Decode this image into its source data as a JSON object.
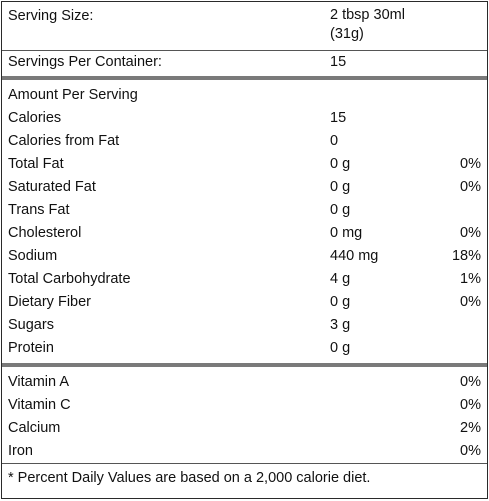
{
  "header": {
    "serving_size_label": "Serving Size:",
    "serving_size_value_line1": "2 tbsp 30ml",
    "serving_size_value_line2": "(31g)",
    "servings_per_container_label": "Servings Per Container:",
    "servings_per_container_value": "15"
  },
  "amount_per_serving_label": "Amount Per Serving",
  "nutrients": [
    {
      "label": "Calories",
      "value": "15",
      "dv": ""
    },
    {
      "label": "Calories from Fat",
      "value": "0",
      "dv": ""
    },
    {
      "label": "Total Fat",
      "value": "0 g",
      "dv": "0%"
    },
    {
      "label": "Saturated Fat",
      "value": "0 g",
      "dv": "0%"
    },
    {
      "label": "Trans Fat",
      "value": "0 g",
      "dv": ""
    },
    {
      "label": "Cholesterol",
      "value": "0 mg",
      "dv": "0%"
    },
    {
      "label": "Sodium",
      "value": "440 mg",
      "dv": "18%"
    },
    {
      "label": "Total Carbohydrate",
      "value": "4 g",
      "dv": "1%"
    },
    {
      "label": "Dietary Fiber",
      "value": "0 g",
      "dv": "0%"
    },
    {
      "label": "Sugars",
      "value": "3 g",
      "dv": ""
    },
    {
      "label": "Protein",
      "value": "0 g",
      "dv": ""
    }
  ],
  "vitamins": [
    {
      "label": "Vitamin A",
      "dv": "0%"
    },
    {
      "label": "Vitamin C",
      "dv": "0%"
    },
    {
      "label": "Calcium",
      "dv": "2%"
    },
    {
      "label": "Iron",
      "dv": "0%"
    }
  ],
  "footnote": "* Percent Daily Values are based on a 2,000 calorie diet."
}
